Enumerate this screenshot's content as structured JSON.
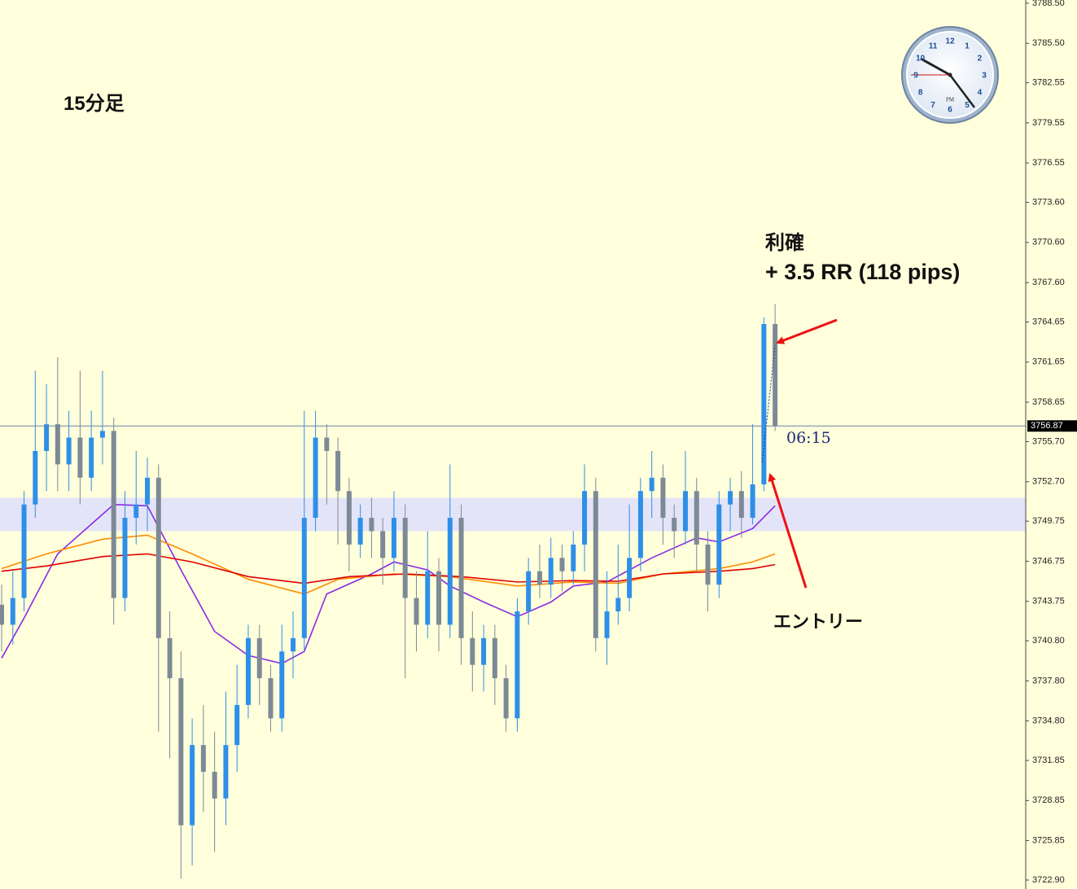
{
  "chart_data": {
    "type": "candlestick",
    "title": "15分足",
    "annotations": [
      "利確",
      "+ 3.5 RR (118 pips)",
      "エントリー",
      "06:15"
    ],
    "up_color": "#2e8fe8",
    "down_color": "#7d8a96",
    "open": [
      3743.5,
      3742,
      3744,
      3751,
      3755,
      3757,
      3754,
      3756,
      3753,
      3756,
      3756.5,
      3744,
      3750,
      3751,
      3753,
      3741,
      3738,
      3727,
      3733,
      3731,
      3729,
      3733,
      3736,
      3741,
      3738,
      3735,
      3740,
      3741,
      3750,
      3756,
      3755,
      3752,
      3748,
      3750,
      3749,
      3747,
      3750,
      3744,
      3742,
      3746,
      3742,
      3750,
      3741,
      3739,
      3741,
      3738,
      3735,
      3743,
      3746,
      3745,
      3747,
      3746,
      3748,
      3752,
      3741,
      3743,
      3744,
      3747,
      3752,
      3753,
      3750,
      3749,
      3752,
      3748,
      3745,
      3751,
      3752,
      3750,
      3752.5,
      3764.5
    ],
    "high": [
      3745,
      3746,
      3752,
      3761,
      3760,
      3762,
      3758,
      3761,
      3758,
      3761,
      3757.5,
      3752,
      3755,
      3754.5,
      3754,
      3743,
      3740,
      3735,
      3736,
      3734,
      3737,
      3739,
      3742,
      3742,
      3739,
      3742,
      3743,
      3758,
      3758,
      3757,
      3756,
      3753,
      3751,
      3751.5,
      3750,
      3752,
      3751,
      3746,
      3749,
      3747,
      3754,
      3751,
      3743,
      3742,
      3742,
      3739,
      3744,
      3747,
      3748,
      3748.5,
      3748,
      3749,
      3754,
      3753,
      3746,
      3748,
      3751,
      3753,
      3755,
      3754,
      3751,
      3755,
      3753,
      3749,
      3752,
      3753,
      3753.5,
      3757,
      3765,
      3766
    ],
    "low": [
      3740,
      3740.5,
      3743,
      3750,
      3752,
      3752,
      3752,
      3751,
      3752,
      3754,
      3742,
      3743,
      3748,
      3749,
      3734,
      3732,
      3723,
      3724,
      3728,
      3725,
      3727,
      3731,
      3735,
      3736,
      3734,
      3734,
      3738,
      3740,
      3749,
      3751,
      3748,
      3746,
      3747,
      3747,
      3745,
      3746,
      3738,
      3740,
      3741,
      3740,
      3741,
      3739,
      3737,
      3737,
      3736,
      3734,
      3734,
      3742,
      3744,
      3744,
      3744.5,
      3745,
      3746,
      3740,
      3739,
      3742,
      3743,
      3746,
      3750,
      3748,
      3747,
      3748,
      3746,
      3743,
      3744,
      3749,
      3748.5,
      3749.5,
      3752,
      3756.5
    ],
    "close": [
      3742,
      3744,
      3751,
      3755,
      3757,
      3754,
      3756,
      3753,
      3756,
      3756.5,
      3744,
      3750,
      3751,
      3753,
      3741,
      3738,
      3727,
      3733,
      3731,
      3729,
      3733,
      3736,
      3741,
      3738,
      3735,
      3740,
      3741,
      3750,
      3756,
      3755,
      3752,
      3748,
      3750,
      3749,
      3747,
      3750,
      3744,
      3742,
      3746,
      3742,
      3750,
      3741,
      3739,
      3741,
      3738,
      3735,
      3743,
      3746,
      3745,
      3747,
      3746,
      3748,
      3752,
      3741,
      3743,
      3744,
      3747,
      3752,
      3753,
      3750,
      3749,
      3752,
      3748,
      3745,
      3751,
      3752,
      3750,
      3752.5,
      3764.5,
      3756.87
    ],
    "lines": [
      {
        "color": "#8a2be2",
        "x": [
          0,
          2,
          5,
          10,
          13,
          16,
          19,
          22,
          25,
          27,
          29,
          33,
          35,
          38,
          40,
          43,
          46,
          49,
          51,
          54,
          58,
          62,
          64,
          67,
          69
        ],
        "values": [
          3739.5,
          3742.5,
          3747.3,
          3751,
          3750.9,
          3746.1,
          3741.5,
          3739.7,
          3739.1,
          3740,
          3744.3,
          3745.8,
          3746.7,
          3746.1,
          3744.9,
          3743.7,
          3742.6,
          3743.7,
          3744.9,
          3745.2,
          3747,
          3748.5,
          3748.2,
          3749.2,
          3750.9
        ]
      },
      {
        "color": "#ff8c00",
        "x": [
          0,
          4,
          9,
          13,
          17,
          22,
          27,
          30,
          35,
          40,
          46,
          51,
          55,
          59,
          64,
          67,
          69
        ],
        "values": [
          3746.2,
          3747.3,
          3748.4,
          3748.7,
          3747.3,
          3745.4,
          3744.3,
          3745.4,
          3745.8,
          3745.6,
          3744.9,
          3745.2,
          3745.1,
          3745.8,
          3746.2,
          3746.7,
          3747.3
        ]
      },
      {
        "color": "#e00000",
        "x": [
          0,
          4,
          9,
          13,
          17,
          22,
          27,
          31,
          36,
          41,
          46,
          51,
          55,
          59,
          64,
          67,
          69
        ],
        "values": [
          3746,
          3746.4,
          3747.1,
          3747.3,
          3746.7,
          3745.6,
          3745.1,
          3745.6,
          3745.8,
          3745.6,
          3745.2,
          3745.3,
          3745.25,
          3745.8,
          3746,
          3746.2,
          3746.5
        ]
      }
    ],
    "zone": [
      3749.0,
      3751.5
    ],
    "zone_color": "#e4e4f8",
    "current_price": 3756.87,
    "ylim": [
      3722.23,
      3788.74
    ],
    "yticks": [
      {
        "value": 3788.5,
        "label": "3788.50"
      },
      {
        "value": 3785.5,
        "label": "3785.50"
      },
      {
        "value": 3782.55,
        "label": "3782.55"
      },
      {
        "value": 3779.55,
        "label": "3779.55"
      },
      {
        "value": 3776.55,
        "label": "3776.55"
      },
      {
        "value": 3773.6,
        "label": "3773.60"
      },
      {
        "value": 3770.6,
        "label": "3770.60"
      },
      {
        "value": 3767.6,
        "label": "3767.60"
      },
      {
        "value": 3764.65,
        "label": "3764.65"
      },
      {
        "value": 3761.65,
        "label": "3761.65"
      },
      {
        "value": 3758.65,
        "label": "3758.65"
      },
      {
        "value": 3755.7,
        "label": "3755.70"
      },
      {
        "value": 3752.7,
        "label": "3752.70"
      },
      {
        "value": 3749.75,
        "label": "3749.75"
      },
      {
        "value": 3746.75,
        "label": "3746.75"
      },
      {
        "value": 3743.75,
        "label": "3743.75"
      },
      {
        "value": 3740.8,
        "label": "3740.80"
      },
      {
        "value": 3737.8,
        "label": "3737.80"
      },
      {
        "value": 3734.8,
        "label": "3734.80"
      },
      {
        "value": 3731.85,
        "label": "3731.85"
      },
      {
        "value": 3728.85,
        "label": "3728.85"
      },
      {
        "value": 3725.85,
        "label": "3725.85"
      },
      {
        "value": 3722.9,
        "label": "3722.90"
      }
    ]
  },
  "clock": {
    "numbers": [
      "12",
      "1",
      "2",
      "3",
      "4",
      "5",
      "6",
      "7",
      "8",
      "9",
      "10",
      "11"
    ],
    "label": "PM"
  }
}
